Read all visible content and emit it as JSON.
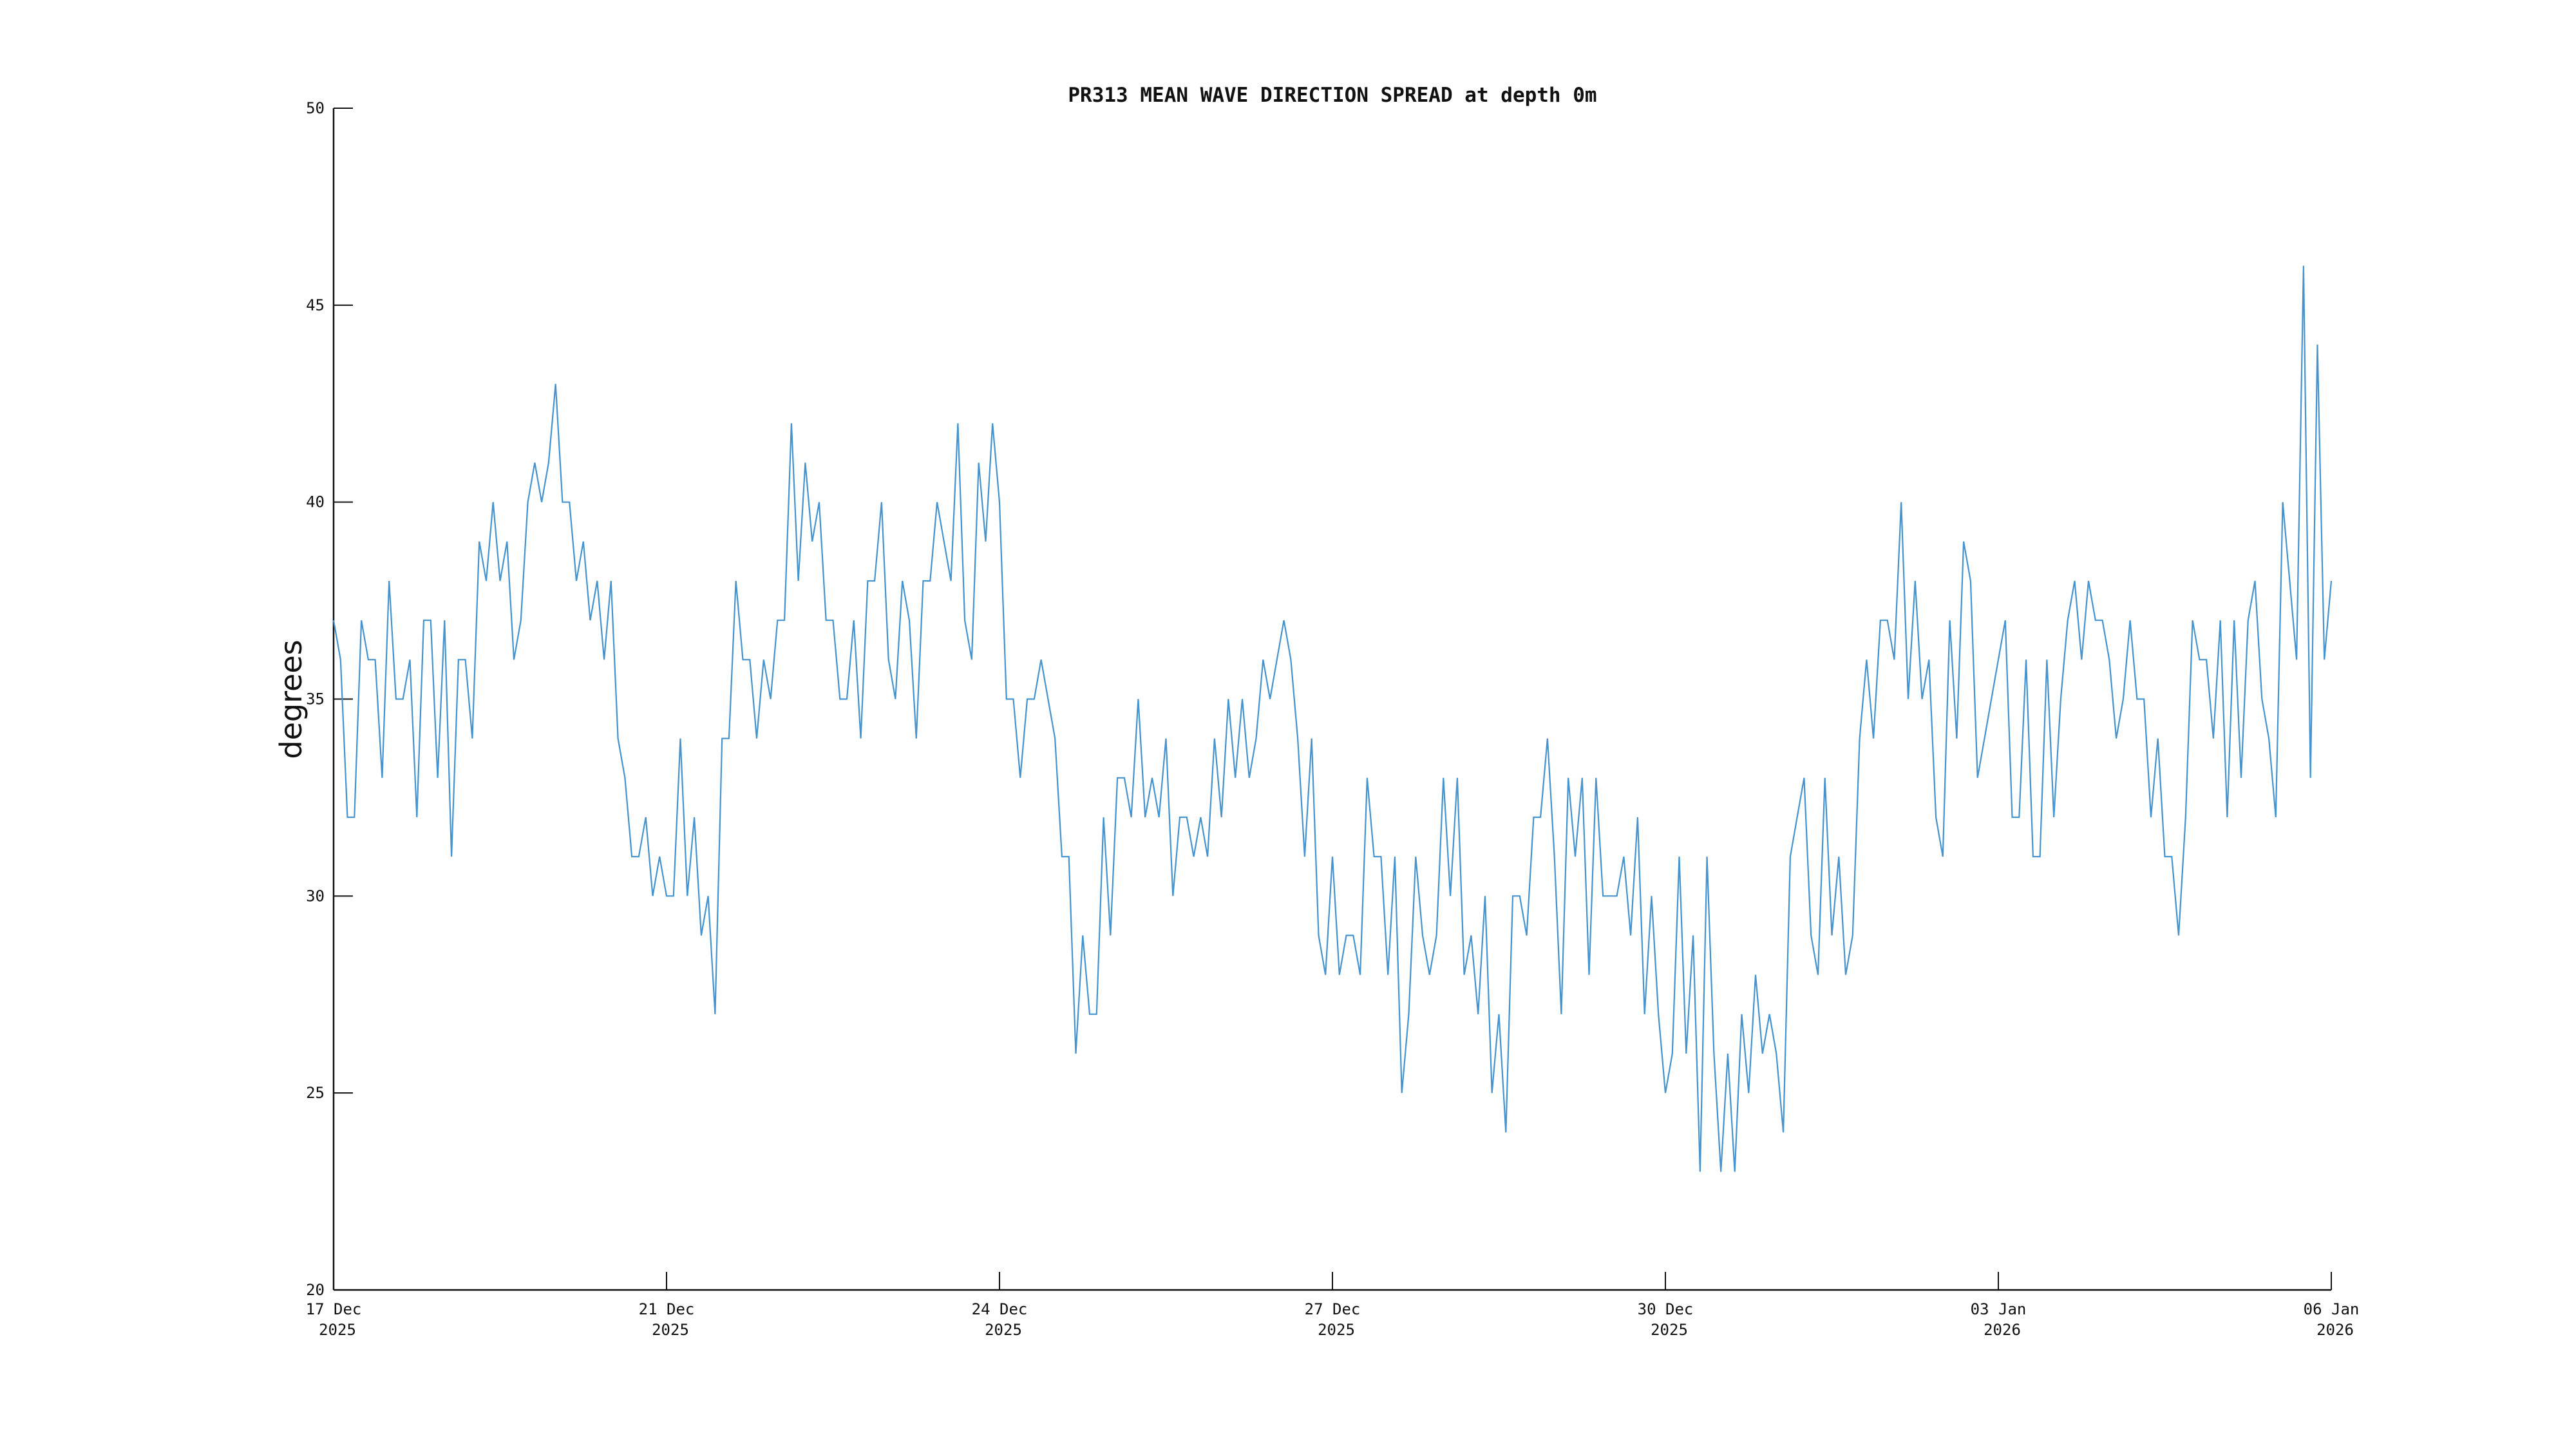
{
  "chart_data": {
    "type": "line",
    "title": "PR313 MEAN WAVE DIRECTION SPREAD at depth 0m",
    "ylabel": "degrees",
    "xlabel": "",
    "ylim": [
      20,
      50
    ],
    "y_ticks": [
      50,
      45,
      40,
      35,
      30,
      25,
      20
    ],
    "x_ticks": [
      {
        "day": "17 Dec",
        "year": "2025"
      },
      {
        "day": "21 Dec",
        "year": "2025"
      },
      {
        "day": "24 Dec",
        "year": "2025"
      },
      {
        "day": "27 Dec",
        "year": "2025"
      },
      {
        "day": "30 Dec",
        "year": "2025"
      },
      {
        "day": "03 Jan",
        "year": "2026"
      },
      {
        "day": "06 Jan",
        "year": "2026"
      }
    ],
    "grid": false,
    "legend": false,
    "colors": {
      "line": "#4593cf",
      "axis": "#111111",
      "text": "#111111",
      "background": "#ffffff"
    },
    "series": [
      {
        "name": "mean wave direction spread (degrees)",
        "values": [
          37,
          36,
          32,
          32,
          37,
          36,
          36,
          33,
          38,
          35,
          35,
          36,
          32,
          37,
          37,
          33,
          37,
          31,
          36,
          36,
          34,
          39,
          38,
          40,
          38,
          39,
          36,
          37,
          40,
          41,
          40,
          41,
          43,
          40,
          40,
          38,
          39,
          37,
          38,
          36,
          38,
          34,
          33,
          31,
          31,
          32,
          30,
          31,
          30,
          30,
          34,
          30,
          32,
          29,
          30,
          27,
          34,
          34,
          38,
          36,
          36,
          34,
          36,
          35,
          37,
          37,
          42,
          38,
          41,
          39,
          40,
          37,
          37,
          35,
          35,
          37,
          34,
          38,
          38,
          40,
          36,
          35,
          38,
          37,
          34,
          38,
          38,
          40,
          39,
          38,
          42,
          37,
          36,
          41,
          39,
          42,
          40,
          35,
          35,
          33,
          35,
          35,
          36,
          35,
          34,
          31,
          31,
          26,
          29,
          27,
          27,
          32,
          29,
          33,
          33,
          32,
          35,
          32,
          33,
          32,
          34,
          30,
          32,
          32,
          31,
          32,
          31,
          34,
          32,
          35,
          33,
          35,
          33,
          34,
          36,
          35,
          36,
          37,
          36,
          34,
          31,
          34,
          29,
          28,
          31,
          28,
          29,
          29,
          28,
          33,
          31,
          31,
          28,
          31,
          25,
          27,
          31,
          29,
          28,
          29,
          33,
          30,
          33,
          28,
          29,
          27,
          30,
          25,
          27,
          24,
          30,
          30,
          29,
          32,
          32,
          34,
          31,
          27,
          33,
          31,
          33,
          28,
          33,
          30,
          30,
          30,
          31,
          29,
          32,
          27,
          30,
          27,
          25,
          26,
          31,
          26,
          29,
          23,
          31,
          26,
          23,
          26,
          23,
          27,
          25,
          28,
          26,
          27,
          26,
          24,
          31,
          32,
          33,
          29,
          28,
          33,
          29,
          31,
          28,
          29,
          34,
          36,
          34,
          37,
          37,
          36,
          40,
          35,
          38,
          35,
          36,
          32,
          31,
          37,
          34,
          39,
          38,
          33,
          34,
          35,
          36,
          37,
          32,
          32,
          36,
          31,
          31,
          36,
          32,
          35,
          37,
          38,
          36,
          38,
          37,
          37,
          36,
          34,
          35,
          37,
          35,
          35,
          32,
          34,
          31,
          31,
          29,
          32,
          37,
          36,
          36,
          34,
          37,
          32,
          37,
          33,
          37,
          38,
          35,
          34,
          32,
          40,
          38,
          36,
          46,
          33,
          44,
          36,
          38
        ]
      }
    ]
  }
}
